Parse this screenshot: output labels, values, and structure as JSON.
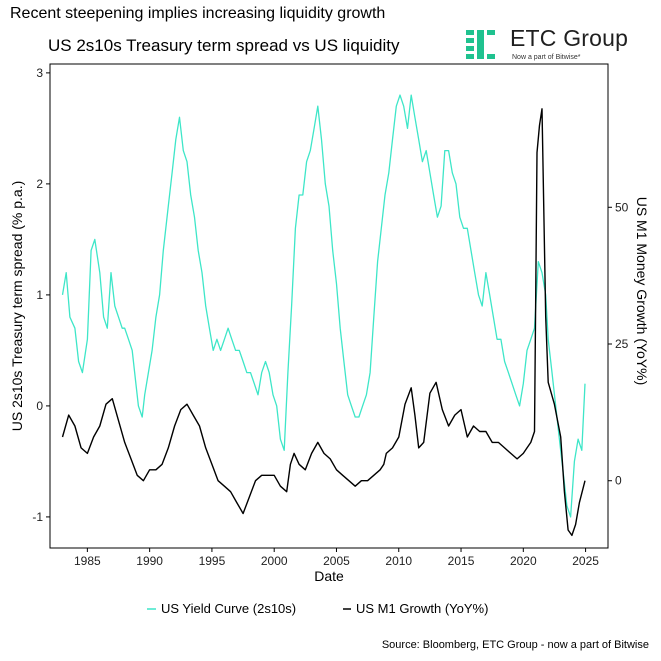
{
  "header": {
    "title": "Recent steepening implies increasing liquidity growth",
    "chart_title": "US 2s10s Treasury term spread vs US liquidity"
  },
  "logo": {
    "name": "ETC Group",
    "tagline": "Now a part of Bitwise*",
    "color": "#1fc28f"
  },
  "source": "Source: Bloomberg, ETC Group - now a part of Bitwise",
  "chart_data": {
    "type": "line",
    "title": "US 2s10s Treasury term spread vs US liquidity",
    "xlabel": "Date",
    "ylabel": "US 2s10s Treasury term spread (% p.a.)",
    "y2label": "US M1 Money Growth (YoY%)",
    "xlim": [
      1982,
      2026.8
    ],
    "ylim": [
      -1.28,
      3.08
    ],
    "y2lim": [
      -12.3,
      76.2
    ],
    "x_ticks": [
      "1985",
      "1990",
      "1995",
      "2000",
      "2005",
      "2010",
      "2015",
      "2020",
      "2025"
    ],
    "y_ticks": [
      "-1",
      "0",
      "1",
      "2",
      "3"
    ],
    "y2_ticks": [
      "0",
      "25",
      "50"
    ],
    "grid": false,
    "legend": "bottom",
    "series": [
      {
        "name": "US Yield Curve (2s10s)",
        "axis": "left",
        "color": "#3ee6c8",
        "x": [
          1983.0,
          1983.3,
          1983.6,
          1984.0,
          1984.3,
          1984.6,
          1985.0,
          1985.3,
          1985.6,
          1986.0,
          1986.3,
          1986.6,
          1986.9,
          1987.2,
          1987.5,
          1987.8,
          1988.0,
          1988.3,
          1988.6,
          1988.9,
          1989.1,
          1989.4,
          1989.6,
          1989.9,
          1990.2,
          1990.5,
          1990.8,
          1991.1,
          1991.5,
          1991.8,
          1992.1,
          1992.4,
          1992.7,
          1993.0,
          1993.3,
          1993.6,
          1993.9,
          1994.2,
          1994.5,
          1994.8,
          1995.1,
          1995.4,
          1995.7,
          1996.0,
          1996.3,
          1996.6,
          1996.9,
          1997.2,
          1997.5,
          1997.8,
          1998.1,
          1998.4,
          1998.7,
          1999.0,
          1999.3,
          1999.6,
          1999.9,
          2000.2,
          2000.5,
          2000.8,
          2001.1,
          2001.4,
          2001.7,
          2002.0,
          2002.3,
          2002.6,
          2002.9,
          2003.2,
          2003.5,
          2003.8,
          2004.1,
          2004.4,
          2004.7,
          2005.0,
          2005.3,
          2005.6,
          2005.9,
          2006.2,
          2006.5,
          2006.8,
          2007.1,
          2007.4,
          2007.7,
          2008.0,
          2008.3,
          2008.6,
          2008.9,
          2009.2,
          2009.5,
          2009.8,
          2010.1,
          2010.4,
          2010.7,
          2011.0,
          2011.3,
          2011.6,
          2011.9,
          2012.2,
          2012.5,
          2012.8,
          2013.1,
          2013.4,
          2013.7,
          2014.0,
          2014.3,
          2014.6,
          2014.9,
          2015.2,
          2015.5,
          2015.8,
          2016.1,
          2016.4,
          2016.7,
          2017.0,
          2017.3,
          2017.6,
          2017.9,
          2018.2,
          2018.5,
          2018.8,
          2019.1,
          2019.4,
          2019.7,
          2020.0,
          2020.3,
          2020.6,
          2020.9,
          2021.2,
          2021.5,
          2021.8,
          2022.0,
          2022.3,
          2022.6,
          2022.9,
          2023.2,
          2023.5,
          2023.8,
          2024.1,
          2024.4,
          2024.7,
          2024.95
        ],
        "y": [
          1.0,
          1.2,
          0.8,
          0.7,
          0.4,
          0.3,
          0.6,
          1.4,
          1.5,
          1.2,
          0.8,
          0.7,
          1.2,
          0.9,
          0.8,
          0.7,
          0.7,
          0.6,
          0.5,
          0.2,
          0.0,
          -0.1,
          0.1,
          0.3,
          0.5,
          0.8,
          1.0,
          1.4,
          1.8,
          2.1,
          2.4,
          2.6,
          2.3,
          2.2,
          1.9,
          1.7,
          1.4,
          1.2,
          0.9,
          0.7,
          0.5,
          0.6,
          0.5,
          0.6,
          0.7,
          0.6,
          0.5,
          0.5,
          0.4,
          0.3,
          0.3,
          0.2,
          0.1,
          0.3,
          0.4,
          0.3,
          0.1,
          0.0,
          -0.3,
          -0.4,
          0.3,
          0.9,
          1.6,
          1.9,
          1.9,
          2.2,
          2.3,
          2.5,
          2.7,
          2.4,
          2.0,
          1.8,
          1.4,
          1.1,
          0.7,
          0.4,
          0.1,
          0.0,
          -0.1,
          -0.1,
          0.0,
          0.1,
          0.3,
          0.8,
          1.3,
          1.6,
          1.9,
          2.1,
          2.4,
          2.7,
          2.8,
          2.7,
          2.5,
          2.8,
          2.6,
          2.4,
          2.2,
          2.3,
          2.1,
          1.9,
          1.7,
          1.8,
          2.3,
          2.3,
          2.1,
          2.0,
          1.7,
          1.6,
          1.6,
          1.4,
          1.2,
          1.0,
          0.9,
          1.2,
          1.0,
          0.8,
          0.6,
          0.6,
          0.4,
          0.3,
          0.2,
          0.1,
          0.0,
          0.2,
          0.5,
          0.6,
          0.7,
          1.3,
          1.2,
          1.0,
          0.6,
          0.3,
          0.0,
          -0.3,
          -0.6,
          -0.9,
          -1.0,
          -0.5,
          -0.3,
          -0.4,
          0.2
        ]
      },
      {
        "name": "US M1 Growth (YoY%)",
        "axis": "right",
        "color": "#000000",
        "x": [
          1983.0,
          1983.5,
          1984.0,
          1984.5,
          1985.0,
          1985.5,
          1986.0,
          1986.5,
          1987.0,
          1987.5,
          1988.0,
          1988.5,
          1989.0,
          1989.5,
          1990.0,
          1990.5,
          1991.0,
          1991.5,
          1992.0,
          1992.5,
          1993.0,
          1993.5,
          1994.0,
          1994.5,
          1995.0,
          1995.5,
          1996.0,
          1996.5,
          1997.0,
          1997.5,
          1998.0,
          1998.5,
          1999.0,
          1999.5,
          2000.0,
          2000.5,
          2001.0,
          2001.3,
          2001.6,
          2002.0,
          2002.5,
          2003.0,
          2003.5,
          2004.0,
          2004.5,
          2005.0,
          2005.5,
          2006.0,
          2006.5,
          2007.0,
          2007.5,
          2008.0,
          2008.5,
          2008.8,
          2009.0,
          2009.5,
          2010.0,
          2010.5,
          2011.0,
          2011.3,
          2011.6,
          2012.0,
          2012.5,
          2013.0,
          2013.5,
          2014.0,
          2014.5,
          2015.0,
          2015.5,
          2016.0,
          2016.5,
          2017.0,
          2017.5,
          2018.0,
          2018.5,
          2019.0,
          2019.5,
          2020.0,
          2020.3,
          2020.6,
          2020.9,
          2021.1,
          2021.3,
          2021.5,
          2021.8,
          2022.0,
          2022.5,
          2023.0,
          2023.3,
          2023.6,
          2023.9,
          2024.2,
          2024.5,
          2024.95
        ],
        "y": [
          8,
          12,
          10,
          6,
          5,
          8,
          10,
          14,
          15,
          11,
          7,
          4,
          1,
          0,
          2,
          2,
          3,
          6,
          10,
          13,
          14,
          12,
          10,
          6,
          3,
          0,
          -1,
          -2,
          -4,
          -6,
          -3,
          0,
          1,
          1,
          1,
          -1,
          -2,
          3,
          5,
          3,
          2,
          5,
          7,
          5,
          4,
          2,
          1,
          0,
          -1,
          0,
          0,
          1,
          2,
          3,
          5,
          6,
          8,
          14,
          17,
          12,
          6,
          7,
          16,
          18,
          13,
          10,
          12,
          13,
          8,
          10,
          9,
          9,
          7,
          7,
          6,
          5,
          4,
          5,
          6,
          7,
          9,
          60,
          65,
          68,
          30,
          18,
          14,
          8,
          -2,
          -9,
          -10,
          -8,
          -4,
          0
        ]
      }
    ]
  }
}
